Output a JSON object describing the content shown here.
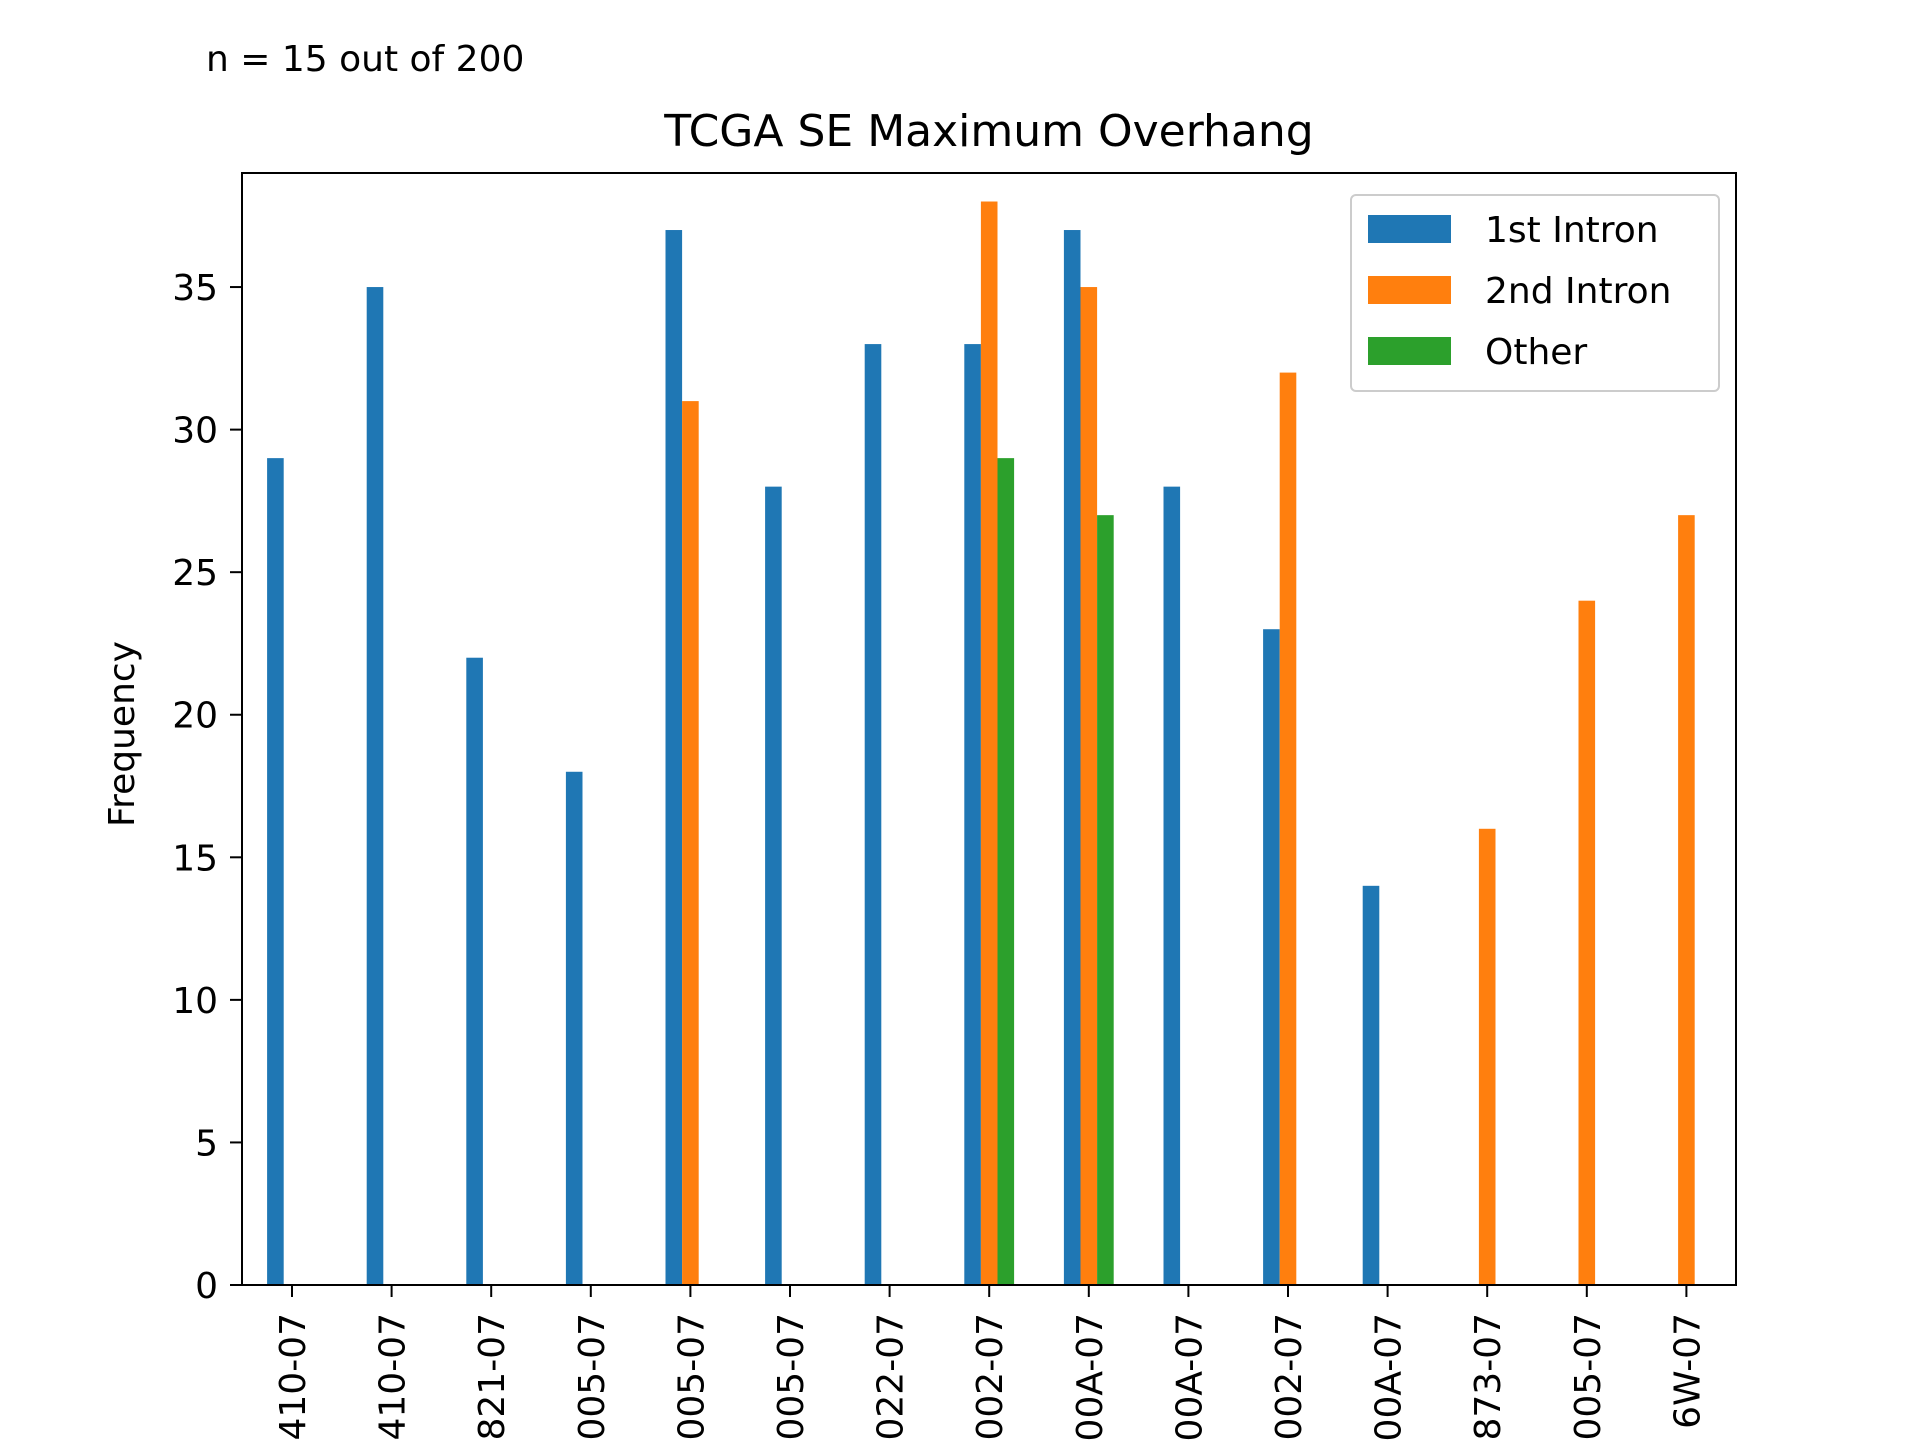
{
  "chart_data": {
    "type": "bar",
    "title": "TCGA SE Maximum Overhang",
    "annotation": "n = 15 out of 200",
    "xlabel": "",
    "ylabel": "Frequency",
    "ylim": [
      0,
      40
    ],
    "yticks": [
      0,
      5,
      10,
      15,
      20,
      25,
      30,
      35
    ],
    "grid": false,
    "legend_position": "top-right",
    "categories": [
      "410-07",
      "410-07",
      "821-07",
      "005-07",
      "005-07",
      "005-07",
      "022-07",
      "002-07",
      "00A-07",
      "00A-07",
      "002-07",
      "00A-07",
      "873-07",
      "005-07",
      "6W-07"
    ],
    "series": [
      {
        "name": "1st Intron",
        "color": "#1f77b4",
        "values": [
          29,
          35,
          22,
          18,
          37,
          28,
          33,
          33,
          37,
          28,
          23,
          14,
          0,
          0,
          0
        ]
      },
      {
        "name": "2nd Intron",
        "color": "#ff7f0e",
        "values": [
          0,
          0,
          0,
          0,
          31,
          0,
          0,
          38,
          35,
          0,
          32,
          0,
          16,
          24,
          27
        ]
      },
      {
        "name": "Other",
        "color": "#2ca02c",
        "values": [
          0,
          0,
          0,
          0,
          0,
          0,
          0,
          29,
          27,
          0,
          0,
          0,
          0,
          0,
          0
        ]
      }
    ]
  }
}
